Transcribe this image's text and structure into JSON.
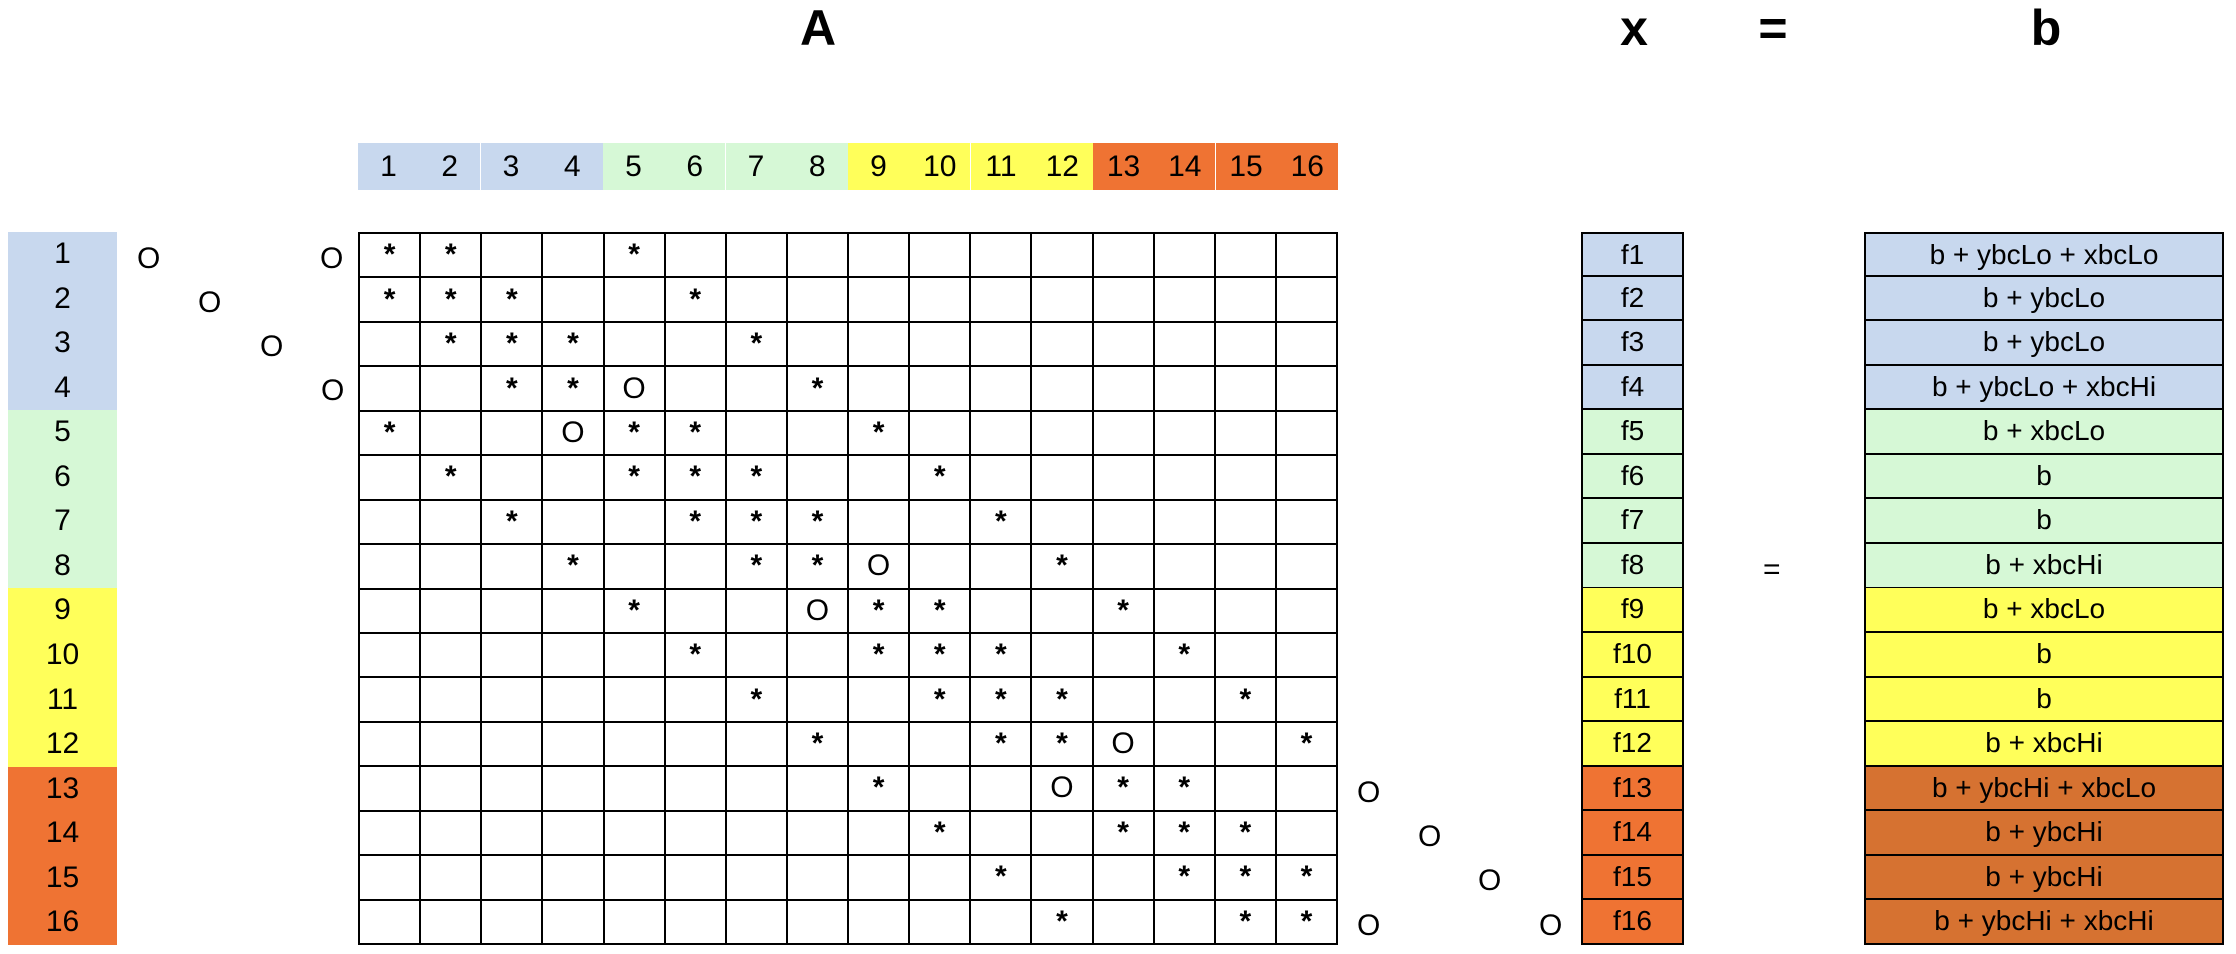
{
  "headings": {
    "A": "A",
    "x": "x",
    "eq": "=",
    "b": "b"
  },
  "colors": {
    "group1": "#c8d8ee",
    "group2": "#d6f8d6",
    "group3": "#ffff5a",
    "group4": "#ef7333",
    "b_group4": "#d67231"
  },
  "column_headers": [
    "1",
    "2",
    "3",
    "4",
    "5",
    "6",
    "7",
    "8",
    "9",
    "10",
    "11",
    "12",
    "13",
    "14",
    "15",
    "16"
  ],
  "row_headers": [
    "1",
    "2",
    "3",
    "4",
    "5",
    "6",
    "7",
    "8",
    "9",
    "10",
    "11",
    "12",
    "13",
    "14",
    "15",
    "16"
  ],
  "matrix_rows": [
    [
      "*",
      "*",
      "",
      "",
      "*",
      "",
      "",
      "",
      "",
      "",
      "",
      "",
      "",
      "",
      "",
      ""
    ],
    [
      "*",
      "*",
      "*",
      "",
      "",
      "*",
      "",
      "",
      "",
      "",
      "",
      "",
      "",
      "",
      "",
      ""
    ],
    [
      "",
      "*",
      "*",
      "*",
      "",
      "",
      "*",
      "",
      "",
      "",
      "",
      "",
      "",
      "",
      "",
      ""
    ],
    [
      "",
      "",
      "*",
      "*",
      "O",
      "",
      "",
      "*",
      "",
      "",
      "",
      "",
      "",
      "",
      "",
      ""
    ],
    [
      "*",
      "",
      "",
      "O",
      "*",
      "*",
      "",
      "",
      "*",
      "",
      "",
      "",
      "",
      "",
      "",
      ""
    ],
    [
      "",
      "*",
      "",
      "",
      "*",
      "*",
      "*",
      "",
      "",
      "*",
      "",
      "",
      "",
      "",
      "",
      ""
    ],
    [
      "",
      "",
      "*",
      "",
      "",
      "*",
      "*",
      "*",
      "",
      "",
      "*",
      "",
      "",
      "",
      "",
      ""
    ],
    [
      "",
      "",
      "",
      "*",
      "",
      "",
      "*",
      "*",
      "O",
      "",
      "",
      "*",
      "",
      "",
      "",
      ""
    ],
    [
      "",
      "",
      "",
      "",
      "*",
      "",
      "",
      "O",
      "*",
      "*",
      "",
      "",
      "*",
      "",
      "",
      ""
    ],
    [
      "",
      "",
      "",
      "",
      "",
      "*",
      "",
      "",
      "*",
      "*",
      "*",
      "",
      "",
      "*",
      "",
      ""
    ],
    [
      "",
      "",
      "",
      "",
      "",
      "",
      "*",
      "",
      "",
      "*",
      "*",
      "*",
      "",
      "",
      "*",
      ""
    ],
    [
      "",
      "",
      "",
      "",
      "",
      "",
      "",
      "*",
      "",
      "",
      "*",
      "*",
      "O",
      "",
      "",
      "*"
    ],
    [
      "",
      "",
      "",
      "",
      "",
      "",
      "",
      "",
      "*",
      "",
      "",
      "O",
      "*",
      "*",
      "",
      ""
    ],
    [
      "",
      "",
      "",
      "",
      "",
      "",
      "",
      "",
      "",
      "*",
      "",
      "",
      "*",
      "*",
      "*",
      ""
    ],
    [
      "",
      "",
      "",
      "",
      "",
      "",
      "",
      "",
      "",
      "",
      "*",
      "",
      "",
      "*",
      "*",
      "*"
    ],
    [
      "",
      "",
      "",
      "",
      "",
      "",
      "",
      "",
      "",
      "",
      "",
      "*",
      "",
      "",
      "*",
      "*"
    ]
  ],
  "side_marks": {
    "left": [
      "O",
      "O",
      "O",
      "O",
      "O"
    ],
    "right": [
      "O",
      "O",
      "O",
      "O",
      "O"
    ]
  },
  "x_vector": [
    "f1",
    "f2",
    "f3",
    "f4",
    "f5",
    "f6",
    "f7",
    "f8",
    "f9",
    "f10",
    "f11",
    "f12",
    "f13",
    "f14",
    "f15",
    "f16"
  ],
  "equals_sign": "=",
  "b_vector": [
    "b + ybcLo + xbcLo",
    "b + ybcLo",
    "b + ybcLo",
    "b + ybcLo + xbcHi",
    "b + xbcLo",
    "b",
    "b",
    "b + xbcHi",
    "b + xbcLo",
    "b",
    "b",
    "b + xbcHi",
    "b + ybcHi + xbcLo",
    "b + ybcHi",
    "b + ybcHi",
    "b + ybcHi + xbcHi"
  ]
}
